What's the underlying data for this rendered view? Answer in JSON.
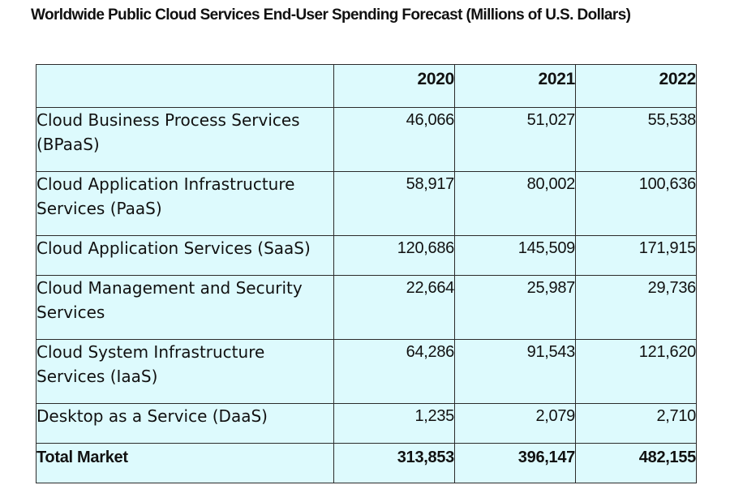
{
  "title": "Worldwide Public Cloud Services End-User Spending Forecast (Millions of U.S. Dollars)",
  "table": {
    "header": [
      "",
      "2020",
      "2021",
      "2022"
    ],
    "rows": [
      {
        "label": "Cloud Business Process Services (BPaaS)",
        "values": [
          "46,066",
          "51,027",
          "55,538"
        ]
      },
      {
        "label": "Cloud Application Infrastructure Services (PaaS)",
        "values": [
          "58,917",
          "80,002",
          "100,636"
        ]
      },
      {
        "label": "Cloud Application Services (SaaS)",
        "values": [
          "120,686",
          "145,509",
          "171,915"
        ]
      },
      {
        "label": "Cloud Management and Security Services",
        "values": [
          "22,664",
          "25,987",
          "29,736"
        ]
      },
      {
        "label": "Cloud System Infrastructure Services (IaaS)",
        "values": [
          "64,286",
          "91,543",
          "121,620"
        ]
      },
      {
        "label": "Desktop as a Service (DaaS)",
        "values": [
          "1,235",
          "2,079",
          "2,710"
        ]
      }
    ],
    "total": {
      "label": "Total Market",
      "values": [
        "313,853",
        "396,147",
        "482,155"
      ]
    }
  },
  "colors": {
    "table_background": "#ddfafd",
    "border": "#2b2b2b",
    "text": "#111111"
  }
}
